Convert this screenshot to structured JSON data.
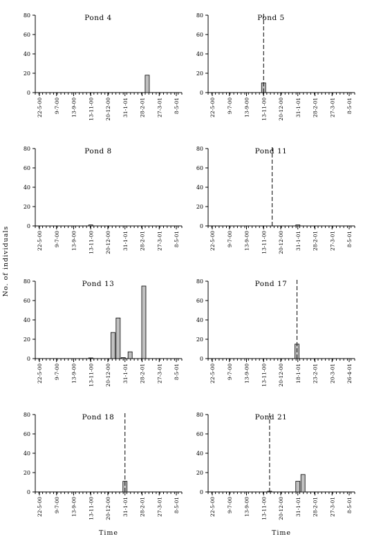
{
  "figure": {
    "ylabel": "No. of individuals",
    "xlabel": "Time"
  },
  "chart_data": [
    {
      "type": "bar",
      "title": "Pond 4",
      "xlabel": "",
      "ylabel": "",
      "ylim": [
        0,
        80
      ],
      "yticks": [
        0,
        20,
        40,
        60,
        80
      ],
      "xticks": [
        "22-5-00",
        "9-7-00",
        "13-9-00",
        "13-11-00",
        "20-12-00",
        "31-1-01",
        "28-2-01",
        "27-3-01",
        "8-5-01"
      ],
      "bars": [
        {
          "x": 6.3,
          "value": 18
        }
      ],
      "dashed_line_x": null
    },
    {
      "type": "bar",
      "title": "Pond 5",
      "xlabel": "",
      "ylabel": "",
      "ylim": [
        0,
        80
      ],
      "yticks": [
        0,
        20,
        40,
        60,
        80
      ],
      "xticks": [
        "22-5-00",
        "9-7-00",
        "13-9-00",
        "13-11-00",
        "20-12-00",
        "31-1-01",
        "28-2-01",
        "27-3-01",
        "8-5-01"
      ],
      "bars": [
        {
          "x": 3.0,
          "value": 10
        }
      ],
      "dashed_line_x": 3.0
    },
    {
      "type": "bar",
      "title": "Pond 8",
      "xlabel": "",
      "ylabel": "",
      "ylim": [
        0,
        80
      ],
      "yticks": [
        0,
        20,
        40,
        60,
        80
      ],
      "xticks": [
        "22-5-00",
        "9-7-00",
        "13-9-00",
        "13-11-00",
        "20-12-00",
        "31-1-01",
        "28-2-01",
        "27-3-01",
        "8-5-01"
      ],
      "bars": [
        {
          "x": 3.0,
          "value": 1
        }
      ],
      "dashed_line_x": null
    },
    {
      "type": "bar",
      "title": "Pond 11",
      "xlabel": "",
      "ylabel": "",
      "ylim": [
        0,
        80
      ],
      "yticks": [
        0,
        20,
        40,
        60,
        80
      ],
      "xticks": [
        "22-5-00",
        "9-7-00",
        "13-9-00",
        "13-11-00",
        "20-12-00",
        "31-1-01",
        "28-2-01",
        "27-3-01",
        "8-5-01"
      ],
      "bars": [
        {
          "x": 5.0,
          "value": 1
        }
      ],
      "dashed_line_x": 3.5
    },
    {
      "type": "bar",
      "title": "Pond 13",
      "xlabel": "",
      "ylabel": "",
      "ylim": [
        0,
        80
      ],
      "yticks": [
        0,
        20,
        40,
        60,
        80
      ],
      "xticks": [
        "22-5-00",
        "9-7-00",
        "13-9-00",
        "13-11-00",
        "20-12-00",
        "31-1-01",
        "28-2-01",
        "27-3-01",
        "8-5-01"
      ],
      "bars": [
        {
          "x": 3.0,
          "value": 0.5
        },
        {
          "x": 4.3,
          "value": 27
        },
        {
          "x": 4.6,
          "value": 42
        },
        {
          "x": 4.9,
          "value": 1
        },
        {
          "x": 5.3,
          "value": 7
        },
        {
          "x": 6.1,
          "value": 75
        }
      ],
      "dashed_line_x": null
    },
    {
      "type": "bar",
      "title": "Pond 17",
      "xlabel": "",
      "ylabel": "",
      "ylim": [
        0,
        80
      ],
      "yticks": [
        0,
        20,
        40,
        60,
        80
      ],
      "xticks": [
        "22-5-00",
        "9-7-00",
        "13-9-00",
        "13-11-00",
        "20-12-00",
        "18-1-01",
        "23-2-01",
        "20-3-01",
        "26-4-01"
      ],
      "bars": [
        {
          "x": 4.95,
          "value": 15
        }
      ],
      "dashed_line_x": 4.95
    },
    {
      "type": "bar",
      "title": "Pond 18",
      "xlabel": "",
      "ylabel": "",
      "ylim": [
        0,
        80
      ],
      "yticks": [
        0,
        20,
        40,
        60,
        80
      ],
      "xticks": [
        "22-5-00",
        "9-7-00",
        "13-9-00",
        "13-11-00",
        "20-12-00",
        "31-1-01",
        "28-2-01",
        "27-3-01",
        "8-5-01"
      ],
      "bars": [
        {
          "x": 5.0,
          "value": 11
        }
      ],
      "dashed_line_x": 5.0
    },
    {
      "type": "bar",
      "title": "Pond 21",
      "xlabel": "",
      "ylabel": "",
      "ylim": [
        0,
        80
      ],
      "yticks": [
        0,
        20,
        40,
        60,
        80
      ],
      "xticks": [
        "22-5-00",
        "9-7-00",
        "13-9-00",
        "13-11-00",
        "20-12-00",
        "31-1-01",
        "28-2-01",
        "27-3-01",
        "8-5-01"
      ],
      "bars": [
        {
          "x": 3.35,
          "value": 0.5
        },
        {
          "x": 5.0,
          "value": 11
        },
        {
          "x": 5.3,
          "value": 18
        }
      ],
      "dashed_line_x": 3.35
    }
  ]
}
